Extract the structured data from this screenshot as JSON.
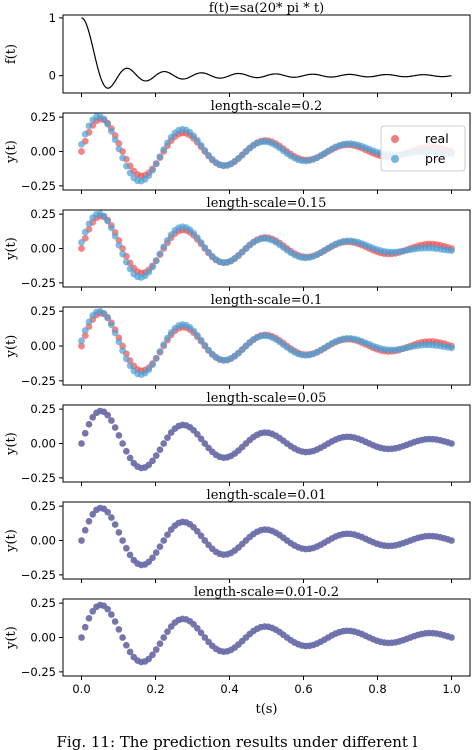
{
  "caption": "Fig. 11: The prediction results under different l",
  "colors": {
    "real": "#f05050",
    "pre": "#4a9fd6",
    "overlap": "#7a6496",
    "line": "#000000"
  },
  "chart_data": [
    {
      "type": "line",
      "title": "f(t)=sa(20* pi * t)",
      "xlabel": "",
      "ylabel": "f(t)",
      "xlim": [
        -0.05,
        1.05
      ],
      "ylim": [
        -0.3,
        1.05
      ],
      "yticks": [
        0,
        1
      ],
      "xticks": [],
      "function": "sin(20*pi*t)/(20*pi*t)",
      "x_range": [
        0,
        1
      ],
      "grid": false
    },
    {
      "type": "scatter",
      "title": "length-scale=0.2",
      "ylabel": "y(t)",
      "xlim": [
        -0.05,
        1.05
      ],
      "ylim": [
        -0.28,
        0.28
      ],
      "yticks": [
        -0.25,
        0.0,
        0.25
      ],
      "legend": {
        "position": "top-right",
        "entries": [
          "real",
          "pre"
        ]
      },
      "series": [
        {
          "name": "real",
          "model": "damped-oscillation",
          "x_range": [
            0,
            1
          ],
          "n_points": 100
        },
        {
          "name": "pre",
          "model": "damped-oscillation-with-error",
          "max_deviation": 0.035
        }
      ]
    },
    {
      "type": "scatter",
      "title": "length-scale=0.15",
      "ylabel": "y(t)",
      "xlim": [
        -0.05,
        1.05
      ],
      "ylim": [
        -0.28,
        0.28
      ],
      "yticks": [
        -0.25,
        0.0,
        0.25
      ],
      "series": [
        {
          "name": "real",
          "model": "damped-oscillation",
          "x_range": [
            0,
            1
          ],
          "n_points": 100
        },
        {
          "name": "pre",
          "model": "damped-oscillation-with-error",
          "max_deviation": 0.03
        }
      ]
    },
    {
      "type": "scatter",
      "title": "length-scale=0.1",
      "ylabel": "y(t)",
      "xlim": [
        -0.05,
        1.05
      ],
      "ylim": [
        -0.28,
        0.28
      ],
      "yticks": [
        -0.25,
        0.0,
        0.25
      ],
      "series": [
        {
          "name": "real",
          "model": "damped-oscillation",
          "x_range": [
            0,
            1
          ],
          "n_points": 100
        },
        {
          "name": "pre",
          "model": "damped-oscillation-with-error",
          "max_deviation": 0.025
        }
      ]
    },
    {
      "type": "scatter",
      "title": "length-scale=0.05",
      "ylabel": "y(t)",
      "xlim": [
        -0.05,
        1.05
      ],
      "ylim": [
        -0.28,
        0.28
      ],
      "yticks": [
        -0.25,
        0.0,
        0.25
      ],
      "series": [
        {
          "name": "real",
          "model": "damped-oscillation",
          "x_range": [
            0,
            1
          ],
          "n_points": 100
        },
        {
          "name": "pre",
          "model": "damped-oscillation-with-error",
          "max_deviation": 0.0
        }
      ]
    },
    {
      "type": "scatter",
      "title": "length-scale=0.01",
      "ylabel": "y(t)",
      "xlim": [
        -0.05,
        1.05
      ],
      "ylim": [
        -0.28,
        0.28
      ],
      "yticks": [
        -0.25,
        0.0,
        0.25
      ],
      "series": [
        {
          "name": "real",
          "model": "damped-oscillation",
          "x_range": [
            0,
            1
          ],
          "n_points": 100
        },
        {
          "name": "pre",
          "model": "damped-oscillation-with-error",
          "max_deviation": 0.0
        }
      ]
    },
    {
      "type": "scatter",
      "title": "length-scale=0.01-0.2",
      "ylabel": "y(t)",
      "xlabel": "t(s)",
      "xlim": [
        -0.05,
        1.05
      ],
      "ylim": [
        -0.28,
        0.28
      ],
      "yticks": [
        -0.25,
        0.0,
        0.25
      ],
      "xticks": [
        0.0,
        0.2,
        0.4,
        0.6,
        0.8,
        1.0
      ],
      "series": [
        {
          "name": "real",
          "model": "damped-oscillation",
          "x_range": [
            0,
            1
          ],
          "n_points": 100
        },
        {
          "name": "pre",
          "model": "damped-oscillation-with-error",
          "max_deviation": 0.0
        }
      ]
    }
  ]
}
